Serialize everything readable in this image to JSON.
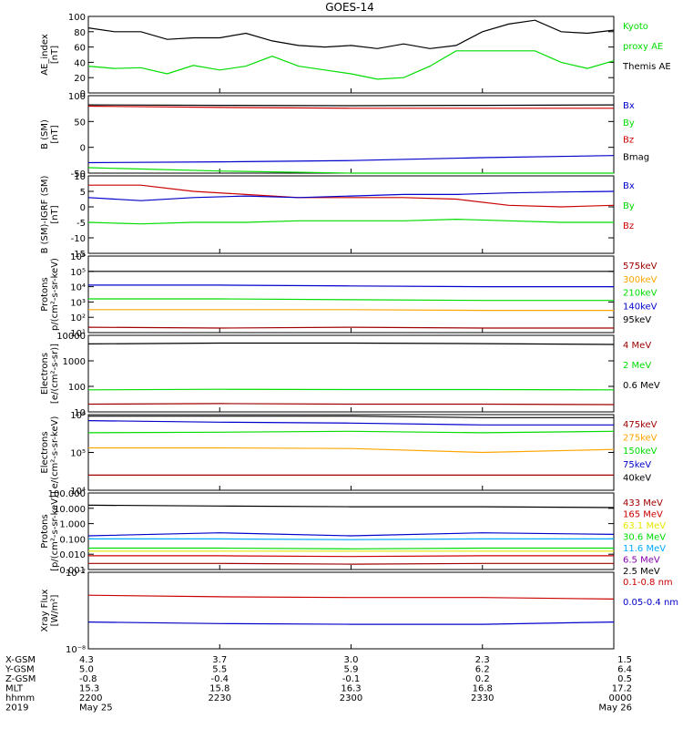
{
  "title": "GOES-14",
  "colors": {
    "black": "#000000",
    "red": "#cc0000",
    "green": "#00dd00",
    "blue": "#0000cc",
    "orange": "#ffa500",
    "yellow": "#e6e600",
    "cyan": "#00aaff",
    "purple": "#8800aa",
    "darkred": "#a00000",
    "lightgreen": "#22cc22"
  },
  "chart_data": [
    {
      "type": "line",
      "id": "ae",
      "ylabel": [
        "AE_index",
        "[nT]"
      ],
      "ylim": [
        0,
        100
      ],
      "yticks": [
        "100",
        "80",
        "60",
        "40",
        "20",
        "0"
      ],
      "legend": [
        {
          "text": "Kyoto",
          "color": "green"
        },
        {
          "text": "proxy AE",
          "color": "green"
        },
        {
          "text": "Themis AE",
          "color": "black"
        }
      ],
      "x": [
        0,
        0.05,
        0.1,
        0.15,
        0.2,
        0.25,
        0.3,
        0.35,
        0.4,
        0.45,
        0.5,
        0.55,
        0.6,
        0.65,
        0.7,
        0.75,
        0.8,
        0.85,
        0.9,
        0.95,
        1
      ],
      "series": [
        {
          "color": "black",
          "values": [
            85,
            80,
            80,
            70,
            72,
            72,
            78,
            68,
            62,
            60,
            62,
            58,
            64,
            58,
            62,
            80,
            90,
            95,
            80,
            78,
            82
          ]
        },
        {
          "color": "green",
          "values": [
            35,
            32,
            33,
            25,
            36,
            30,
            35,
            48,
            35,
            30,
            25,
            18,
            20,
            35,
            55,
            55,
            55,
            55,
            40,
            32,
            42
          ]
        }
      ]
    },
    {
      "type": "line",
      "id": "bsm",
      "ylabel": [
        "B (SM)",
        "[nT]"
      ],
      "ylim": [
        -55,
        130
      ],
      "yticks": [
        "100",
        "50",
        "0",
        "-50"
      ],
      "legend": [
        {
          "text": "Bx",
          "color": "blue"
        },
        {
          "text": "By",
          "color": "green"
        },
        {
          "text": "Bz",
          "color": "red"
        },
        {
          "text": "Bmag",
          "color": "black"
        }
      ],
      "x": [
        0,
        0.25,
        0.5,
        0.75,
        1
      ],
      "series": [
        {
          "color": "black",
          "values": [
            108,
            107,
            106,
            107,
            108
          ]
        },
        {
          "color": "red",
          "values": [
            105,
            102,
            100,
            100,
            100
          ]
        },
        {
          "color": "blue",
          "values": [
            -30,
            -28,
            -25,
            -18,
            -13
          ]
        },
        {
          "color": "green",
          "values": [
            -42,
            -50,
            -55,
            -57,
            -58
          ]
        }
      ]
    },
    {
      "type": "line",
      "id": "bigrf",
      "ylabel": [
        "B (SM)-IGRF (SM)",
        "[nT]"
      ],
      "ylim": [
        -15,
        10
      ],
      "yticks": [
        "10",
        "5",
        "0",
        "-5",
        "-10",
        "-15"
      ],
      "legend": [
        {
          "text": "Bx",
          "color": "blue"
        },
        {
          "text": "By",
          "color": "green"
        },
        {
          "text": "Bz",
          "color": "red"
        }
      ],
      "x": [
        0,
        0.1,
        0.2,
        0.3,
        0.4,
        0.5,
        0.6,
        0.7,
        0.8,
        0.9,
        1
      ],
      "series": [
        {
          "color": "red",
          "values": [
            7,
            7,
            5,
            4,
            3,
            3,
            3,
            2.5,
            0.5,
            0,
            0.5
          ]
        },
        {
          "color": "blue",
          "values": [
            3,
            2,
            3,
            3.5,
            3,
            3.5,
            4,
            4,
            4.5,
            4.8,
            5
          ]
        },
        {
          "color": "green",
          "values": [
            -5,
            -5.5,
            -5,
            -5,
            -4.5,
            -4.5,
            -4.5,
            -4,
            -4.5,
            -5,
            -5
          ]
        }
      ]
    },
    {
      "type": "line",
      "id": "protons-kev",
      "ylabel": [
        "Protons",
        "p/(cm²-s-sr-keV)"
      ],
      "log": true,
      "ylim": [
        1,
        6
      ],
      "yticks": [
        "10⁶",
        "10⁵",
        "10⁴",
        "10³",
        "10²",
        "10¹"
      ],
      "legend": [
        {
          "text": "575keV",
          "color": "darkred"
        },
        {
          "text": "300keV",
          "color": "orange"
        },
        {
          "text": "210keV",
          "color": "green"
        },
        {
          "text": "140keV",
          "color": "blue"
        },
        {
          "text": "95keV",
          "color": "black"
        }
      ],
      "x": [
        0,
        0.25,
        0.5,
        0.75,
        1
      ],
      "series": [
        {
          "color": "black",
          "values": [
            5.0,
            5.0,
            5.0,
            5.0,
            5.0
          ]
        },
        {
          "color": "blue",
          "values": [
            4.1,
            4.1,
            4.05,
            4.0,
            4.0
          ]
        },
        {
          "color": "green",
          "values": [
            3.2,
            3.2,
            3.15,
            3.1,
            3.1
          ]
        },
        {
          "color": "orange",
          "values": [
            2.5,
            2.5,
            2.5,
            2.45,
            2.45
          ]
        },
        {
          "color": "darkred",
          "values": [
            1.35,
            1.3,
            1.35,
            1.3,
            1.3
          ]
        }
      ]
    },
    {
      "type": "line",
      "id": "electrons-mev",
      "ylabel": [
        "Electrons",
        "[e/(cm²-s-sr)]"
      ],
      "log": true,
      "ylim": [
        1,
        3.95
      ],
      "yticks": [
        "10000",
        "1000",
        "100",
        "10"
      ],
      "legend": [
        {
          "text": "4 MeV",
          "color": "darkred"
        },
        {
          "text": "2 MeV",
          "color": "green"
        },
        {
          "text": "0.6 MeV",
          "color": "black"
        }
      ],
      "x": [
        0,
        0.25,
        0.5,
        0.75,
        1
      ],
      "series": [
        {
          "color": "black",
          "values": [
            3.62,
            3.65,
            3.65,
            3.63,
            3.6
          ]
        },
        {
          "color": "green",
          "values": [
            1.85,
            1.87,
            1.86,
            1.86,
            1.85
          ]
        },
        {
          "color": "darkred",
          "values": [
            1.3,
            1.32,
            1.3,
            1.3,
            1.28
          ]
        }
      ]
    },
    {
      "type": "line",
      "id": "electrons-kev",
      "ylabel": [
        "Electrons",
        "e/(cm²-s-sr-keV)"
      ],
      "log": true,
      "ylim": [
        3.5,
        6
      ],
      "yticks": [
        "10⁶",
        "10⁵",
        "10⁴"
      ],
      "legend": [
        {
          "text": "475keV",
          "color": "darkred"
        },
        {
          "text": "275keV",
          "color": "orange"
        },
        {
          "text": "150keV",
          "color": "green"
        },
        {
          "text": "75keV",
          "color": "blue"
        },
        {
          "text": "40keV",
          "color": "black"
        }
      ],
      "x": [
        0,
        0.25,
        0.5,
        0.75,
        1
      ],
      "series": [
        {
          "color": "black",
          "values": [
            5.95,
            5.95,
            5.95,
            5.9,
            5.9
          ]
        },
        {
          "color": "blue",
          "values": [
            5.8,
            5.75,
            5.72,
            5.66,
            5.66
          ]
        },
        {
          "color": "green",
          "values": [
            5.4,
            5.42,
            5.45,
            5.4,
            5.45
          ]
        },
        {
          "color": "orange",
          "values": [
            4.9,
            4.9,
            4.88,
            4.75,
            4.85
          ]
        },
        {
          "color": "darkred",
          "values": [
            4.0,
            4.0,
            4.0,
            4.0,
            4.0
          ]
        }
      ]
    },
    {
      "type": "line",
      "id": "protons-mev",
      "ylabel": [
        "Protons",
        "[p/(cm²-s-sr-keV)]"
      ],
      "log": true,
      "ylim": [
        -3,
        2
      ],
      "yticks": [
        "100.000",
        "10.000",
        "1.000",
        "0.100",
        "0.010",
        "0.001"
      ],
      "legend": [
        {
          "text": "433 MeV",
          "color": "darkred"
        },
        {
          "text": "165 MeV",
          "color": "red"
        },
        {
          "text": "63.1 MeV",
          "color": "yellow"
        },
        {
          "text": "30.6 MeV",
          "color": "green"
        },
        {
          "text": "11.6 MeV",
          "color": "cyan"
        },
        {
          "text": "6.5 MeV",
          "color": "purple"
        },
        {
          "text": "2.5 MeV",
          "color": "black"
        }
      ],
      "x": [
        0,
        0.25,
        0.5,
        0.75,
        1
      ],
      "series": [
        {
          "color": "black",
          "values": [
            1.2,
            1.15,
            1.1,
            1.1,
            1.05
          ]
        },
        {
          "color": "blue",
          "values": [
            -0.8,
            -0.6,
            -0.8,
            -0.6,
            -0.7
          ]
        },
        {
          "color": "cyan",
          "values": [
            -1.0,
            -1.0,
            -1.05,
            -1.0,
            -1.0
          ]
        },
        {
          "color": "green",
          "values": [
            -1.6,
            -1.6,
            -1.65,
            -1.6,
            -1.6
          ]
        },
        {
          "color": "yellow",
          "values": [
            -1.8,
            -1.8,
            -1.8,
            -1.8,
            -1.8
          ]
        },
        {
          "color": "red",
          "values": [
            -2.1,
            -2.1,
            -2.15,
            -2.1,
            -2.1
          ]
        },
        {
          "color": "darkred",
          "values": [
            -2.6,
            -2.6,
            -2.65,
            -2.6,
            -2.6
          ]
        }
      ]
    },
    {
      "type": "line",
      "id": "xray",
      "ylabel": [
        "Xray Flux",
        "[W/m²]"
      ],
      "log": true,
      "ylim": [
        -8,
        -7
      ],
      "yticks": [
        "10⁻⁷",
        "10⁻⁸"
      ],
      "legend": [
        {
          "text": "0.1-0.8 nm",
          "color": "red"
        },
        {
          "text": "0.05-0.4 nm",
          "color": "blue"
        }
      ],
      "x": [
        0,
        0.25,
        0.5,
        0.75,
        1
      ],
      "series": [
        {
          "color": "red",
          "values": [
            -7.3,
            -7.32,
            -7.33,
            -7.33,
            -7.35
          ]
        },
        {
          "color": "blue",
          "values": [
            -7.65,
            -7.67,
            -7.68,
            -7.68,
            -7.65
          ]
        }
      ]
    }
  ],
  "xaxis": {
    "labels": [
      "X-GSM",
      "Y-GSM",
      "Z-GSM",
      "MLT",
      "hhmm",
      "2019"
    ],
    "columns": [
      {
        "values": [
          "4.3",
          "5.0",
          "-0.8",
          "15.3",
          "2200",
          "May 25"
        ]
      },
      {
        "values": [
          "3.7",
          "5.5",
          "-0.4",
          "15.8",
          "2230",
          ""
        ]
      },
      {
        "values": [
          "3.0",
          "5.9",
          "-0.1",
          "16.3",
          "2300",
          ""
        ]
      },
      {
        "values": [
          "2.3",
          "6.2",
          "0.2",
          "16.8",
          "2330",
          ""
        ]
      },
      {
        "values": [
          "1.5",
          "6.4",
          "0.5",
          "17.2",
          "0000",
          "May 26"
        ]
      }
    ]
  }
}
